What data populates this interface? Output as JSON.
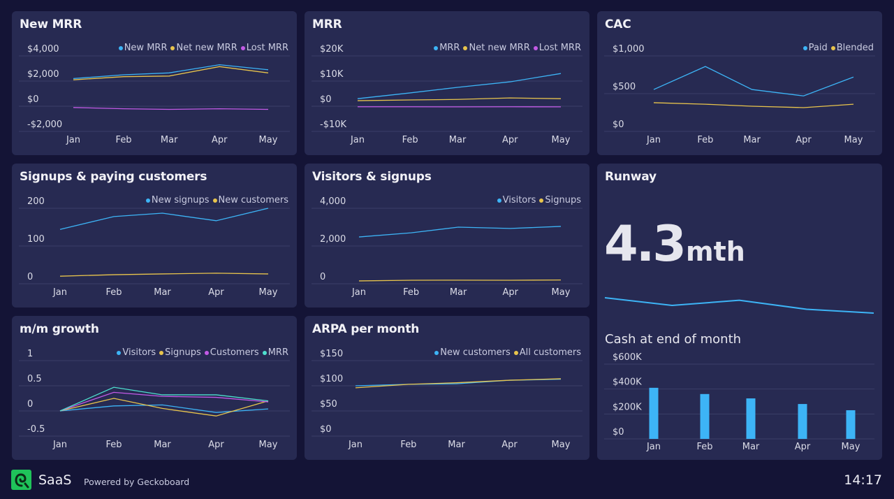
{
  "colors": {
    "background": "#141436",
    "panel": "#272a52",
    "grid": "#3b3f68",
    "blue": "#3db4f6",
    "yellow": "#e8c44c",
    "purple": "#c35ae6",
    "teal": "#4ee0cf"
  },
  "chart_data": [
    {
      "type": "line",
      "title": "New MRR",
      "categories": [
        "Jan",
        "Feb",
        "Mar",
        "Apr",
        "May"
      ],
      "ylim": [
        -2000,
        4000
      ],
      "yticks": [
        4000,
        2000,
        0,
        -2000
      ],
      "ytick_labels": [
        "$4,000",
        "$2,000",
        "$0",
        "-$2,000"
      ],
      "legend": "top-right",
      "grid": true,
      "series": [
        {
          "name": "New MRR",
          "color": "#3db4f6",
          "values": [
            2200,
            2500,
            2650,
            3300,
            2900
          ]
        },
        {
          "name": "Net new MRR",
          "color": "#e8c44c",
          "values": [
            2100,
            2350,
            2400,
            3150,
            2650
          ]
        },
        {
          "name": "Lost MRR",
          "color": "#c35ae6",
          "values": [
            -100,
            -200,
            -250,
            -200,
            -250
          ]
        }
      ]
    },
    {
      "type": "line",
      "title": "MRR",
      "categories": [
        "Jan",
        "Feb",
        "Mar",
        "Apr",
        "May"
      ],
      "ylim": [
        -10000,
        20000
      ],
      "yticks": [
        20000,
        10000,
        0,
        -10000
      ],
      "ytick_labels": [
        "$20K",
        "$10K",
        "$0",
        "-$10K"
      ],
      "legend": "top-right",
      "grid": true,
      "series": [
        {
          "name": "MRR",
          "color": "#3db4f6",
          "values": [
            3000,
            5300,
            7500,
            9700,
            13000
          ]
        },
        {
          "name": "Net new MRR",
          "color": "#e8c44c",
          "values": [
            2200,
            2500,
            2700,
            3300,
            3000
          ]
        },
        {
          "name": "Lost MRR",
          "color": "#c35ae6",
          "values": [
            -200,
            -200,
            -250,
            -200,
            -250
          ]
        }
      ]
    },
    {
      "type": "line",
      "title": "CAC",
      "categories": [
        "Jan",
        "Feb",
        "Mar",
        "Apr",
        "May"
      ],
      "ylim": [
        0,
        1000
      ],
      "yticks": [
        1000,
        500,
        0
      ],
      "ytick_labels": [
        "$1,000",
        "$500",
        "$0"
      ],
      "legend": "top-right",
      "grid": true,
      "series": [
        {
          "name": "Paid",
          "color": "#3db4f6",
          "values": [
            555,
            860,
            555,
            470,
            720
          ]
        },
        {
          "name": "Blended",
          "color": "#e8c44c",
          "values": [
            380,
            360,
            333,
            315,
            360
          ]
        }
      ]
    },
    {
      "type": "line",
      "title": "Signups & paying customers",
      "categories": [
        "Jan",
        "Feb",
        "Mar",
        "Apr",
        "May"
      ],
      "ylim": [
        0,
        200
      ],
      "yticks": [
        200,
        100,
        0
      ],
      "ytick_labels": [
        "200",
        "100",
        "0"
      ],
      "legend": "top-right",
      "grid": true,
      "series": [
        {
          "name": "New signups",
          "color": "#3db4f6",
          "values": [
            144,
            178,
            187,
            167,
            200
          ]
        },
        {
          "name": "New customers",
          "color": "#e8c44c",
          "values": [
            20,
            24,
            26,
            28,
            26
          ]
        }
      ]
    },
    {
      "type": "line",
      "title": "Visitors & signups",
      "categories": [
        "Jan",
        "Feb",
        "Mar",
        "Apr",
        "May"
      ],
      "ylim": [
        0,
        4000
      ],
      "yticks": [
        4000,
        2000,
        0
      ],
      "ytick_labels": [
        "4,000",
        "2,000",
        "0"
      ],
      "legend": "top-right",
      "grid": true,
      "series": [
        {
          "name": "Visitors",
          "color": "#3db4f6",
          "values": [
            2480,
            2700,
            3000,
            2930,
            3040
          ]
        },
        {
          "name": "Signups",
          "color": "#e8c44c",
          "values": [
            150,
            185,
            190,
            185,
            200
          ]
        }
      ]
    },
    {
      "type": "line",
      "title": "m/m growth",
      "categories": [
        "Jan",
        "Feb",
        "Mar",
        "Apr",
        "May"
      ],
      "ylim": [
        -0.5,
        1
      ],
      "yticks": [
        1,
        0.5,
        0,
        -0.5
      ],
      "ytick_labels": [
        "1",
        "0.5",
        "0",
        "-0.5"
      ],
      "legend": "top-right",
      "grid": true,
      "series": [
        {
          "name": "Visitors",
          "color": "#3db4f6",
          "values": [
            0,
            0.1,
            0.12,
            -0.03,
            0.04
          ]
        },
        {
          "name": "Signups",
          "color": "#e8c44c",
          "values": [
            0,
            0.25,
            0.05,
            -0.1,
            0.2
          ]
        },
        {
          "name": "Customers",
          "color": "#c35ae6",
          "values": [
            0,
            0.37,
            0.29,
            0.27,
            0.18
          ]
        },
        {
          "name": "MRR",
          "color": "#4ee0cf",
          "values": [
            0,
            0.47,
            0.32,
            0.32,
            0.2
          ]
        }
      ]
    },
    {
      "type": "line",
      "title": "ARPA per month",
      "categories": [
        "Jan",
        "Feb",
        "Mar",
        "Apr",
        "May"
      ],
      "ylim": [
        0,
        150
      ],
      "yticks": [
        150,
        100,
        50,
        0
      ],
      "ytick_labels": [
        "$150",
        "$100",
        "$50",
        "$0"
      ],
      "legend": "top-right",
      "grid": true,
      "series": [
        {
          "name": "New customers",
          "color": "#3db4f6",
          "values": [
            100,
            103,
            104,
            111,
            113
          ]
        },
        {
          "name": "All customers",
          "color": "#e8c44c",
          "values": [
            96,
            103,
            106,
            111,
            114
          ]
        }
      ]
    },
    {
      "type": "bar",
      "title": "Cash at end of month",
      "categories": [
        "Jan",
        "Feb",
        "Mar",
        "Apr",
        "May"
      ],
      "ylim": [
        0,
        600000
      ],
      "yticks": [
        600000,
        400000,
        200000,
        0
      ],
      "ytick_labels": [
        "$600K",
        "$400K",
        "$200K",
        "$0"
      ],
      "grid": true,
      "series": [
        {
          "color": "#3db4f6",
          "values": [
            410000,
            360000,
            325000,
            280000,
            230000
          ]
        }
      ]
    }
  ],
  "runway": {
    "title": "Runway",
    "value": "4.3",
    "unit": "mth",
    "trend_color": "#3db4f6",
    "trend": [
      4.9,
      4.6,
      4.8,
      4.45,
      4.3
    ]
  },
  "footer": {
    "brand": "SaaS",
    "powered_by": "Powered by Geckoboard",
    "time": "14:17"
  }
}
